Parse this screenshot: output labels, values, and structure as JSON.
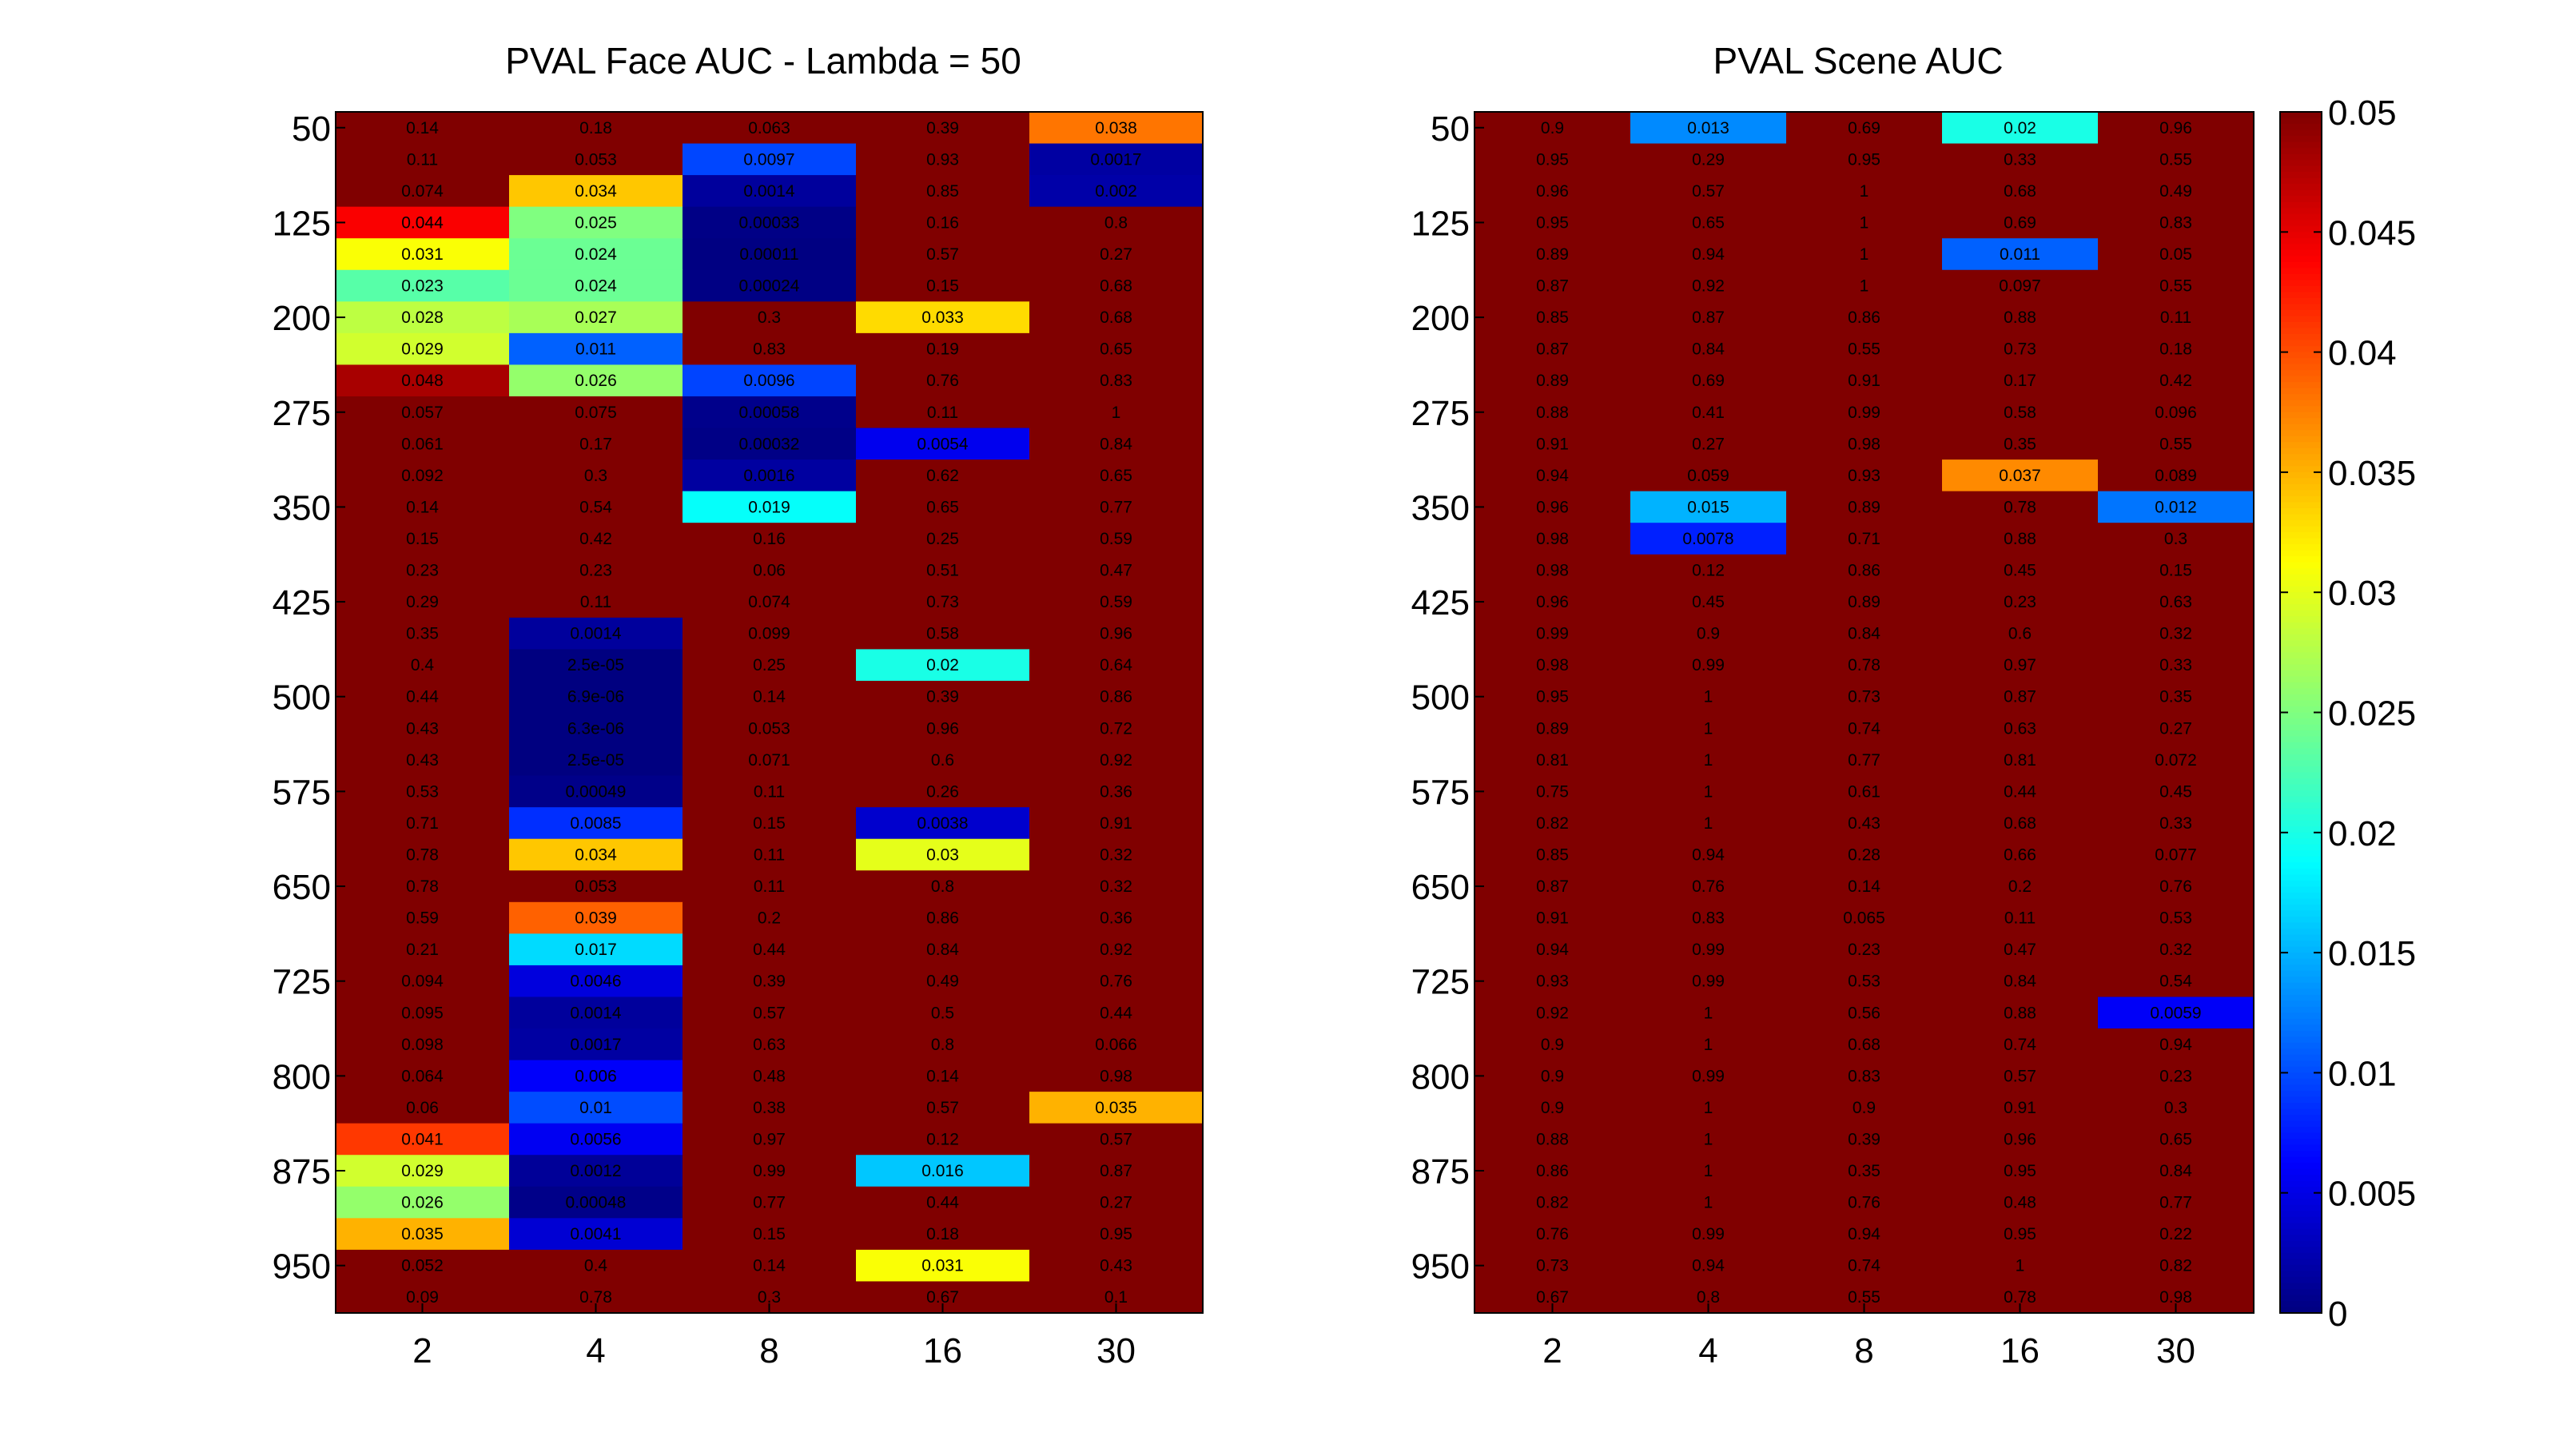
{
  "chart_data": [
    {
      "type": "heatmap",
      "title": "PVAL Face AUC - Lambda = 50",
      "x_tick_labels": [
        "2",
        "4",
        "8",
        "16",
        "30"
      ],
      "y_tick_labels": [
        "50",
        "125",
        "200",
        "275",
        "350",
        "425",
        "500",
        "575",
        "650",
        "725",
        "800",
        "875",
        "950"
      ],
      "rows": 38,
      "clim": [
        0,
        0.05
      ],
      "colormap": "jet",
      "labels": [
        [
          "0.14",
          "0.18",
          "0.063",
          "0.39",
          "0.038"
        ],
        [
          "0.11",
          "0.053",
          "0.0097",
          "0.93",
          "0.0017"
        ],
        [
          "0.074",
          "0.034",
          "0.0014",
          "0.85",
          "0.002"
        ],
        [
          "0.044",
          "0.025",
          "0.00033",
          "0.16",
          "0.8"
        ],
        [
          "0.031",
          "0.024",
          "0.00011",
          "0.57",
          "0.27"
        ],
        [
          "0.023",
          "0.024",
          "0.00024",
          "0.15",
          "0.68"
        ],
        [
          "0.028",
          "0.027",
          "0.3",
          "0.033",
          "0.68"
        ],
        [
          "0.029",
          "0.011",
          "0.83",
          "0.19",
          "0.65"
        ],
        [
          "0.048",
          "0.026",
          "0.0096",
          "0.76",
          "0.83"
        ],
        [
          "0.057",
          "0.075",
          "0.00058",
          "0.11",
          "1"
        ],
        [
          "0.061",
          "0.17",
          "0.00032",
          "0.0054",
          "0.84"
        ],
        [
          "0.092",
          "0.3",
          "0.0016",
          "0.62",
          "0.65"
        ],
        [
          "0.14",
          "0.54",
          "0.019",
          "0.65",
          "0.77"
        ],
        [
          "0.15",
          "0.42",
          "0.16",
          "0.25",
          "0.59"
        ],
        [
          "0.23",
          "0.23",
          "0.06",
          "0.51",
          "0.47"
        ],
        [
          "0.29",
          "0.11",
          "0.074",
          "0.73",
          "0.59"
        ],
        [
          "0.35",
          "0.0014",
          "0.099",
          "0.58",
          "0.96"
        ],
        [
          "0.4",
          "2.5e-05",
          "0.25",
          "0.02",
          "0.64"
        ],
        [
          "0.44",
          "6.9e-06",
          "0.14",
          "0.39",
          "0.86"
        ],
        [
          "0.43",
          "6.3e-06",
          "0.053",
          "0.96",
          "0.72"
        ],
        [
          "0.43",
          "2.5e-05",
          "0.071",
          "0.6",
          "0.92"
        ],
        [
          "0.53",
          "0.00049",
          "0.11",
          "0.26",
          "0.36"
        ],
        [
          "0.71",
          "0.0085",
          "0.15",
          "0.0038",
          "0.91"
        ],
        [
          "0.78",
          "0.034",
          "0.11",
          "0.03",
          "0.32"
        ],
        [
          "0.78",
          "0.053",
          "0.11",
          "0.8",
          "0.32"
        ],
        [
          "0.59",
          "0.039",
          "0.2",
          "0.86",
          "0.36"
        ],
        [
          "0.21",
          "0.017",
          "0.44",
          "0.84",
          "0.92"
        ],
        [
          "0.094",
          "0.0046",
          "0.39",
          "0.49",
          "0.76"
        ],
        [
          "0.095",
          "0.0014",
          "0.57",
          "0.5",
          "0.44"
        ],
        [
          "0.098",
          "0.0017",
          "0.63",
          "0.8",
          "0.066"
        ],
        [
          "0.064",
          "0.006",
          "0.48",
          "0.14",
          "0.98"
        ],
        [
          "0.06",
          "0.01",
          "0.38",
          "0.57",
          "0.035"
        ],
        [
          "0.041",
          "0.0056",
          "0.97",
          "0.12",
          "0.57"
        ],
        [
          "0.029",
          "0.0012",
          "0.99",
          "0.016",
          "0.87"
        ],
        [
          "0.026",
          "0.00048",
          "0.77",
          "0.44",
          "0.27"
        ],
        [
          "0.035",
          "0.0041",
          "0.15",
          "0.18",
          "0.95"
        ],
        [
          "0.052",
          "0.4",
          "0.14",
          "0.031",
          "0.43"
        ],
        [
          "0.09",
          "0.78",
          "0.3",
          "0.67",
          "0.1"
        ]
      ]
    },
    {
      "type": "heatmap",
      "title": "PVAL Scene AUC",
      "x_tick_labels": [
        "2",
        "4",
        "8",
        "16",
        "30"
      ],
      "y_tick_labels": [
        "50",
        "125",
        "200",
        "275",
        "350",
        "425",
        "500",
        "575",
        "650",
        "725",
        "800",
        "875",
        "950"
      ],
      "rows": 38,
      "clim": [
        0,
        0.05
      ],
      "colormap": "jet",
      "labels": [
        [
          "0.9",
          "0.013",
          "0.69",
          "0.02",
          "0.96"
        ],
        [
          "0.95",
          "0.29",
          "0.95",
          "0.33",
          "0.55"
        ],
        [
          "0.96",
          "0.57",
          "1",
          "0.68",
          "0.49"
        ],
        [
          "0.95",
          "0.65",
          "1",
          "0.69",
          "0.83"
        ],
        [
          "0.89",
          "0.94",
          "1",
          "0.011",
          "0.05"
        ],
        [
          "0.87",
          "0.92",
          "1",
          "0.097",
          "0.55"
        ],
        [
          "0.85",
          "0.87",
          "0.86",
          "0.88",
          "0.11"
        ],
        [
          "0.87",
          "0.84",
          "0.55",
          "0.73",
          "0.18"
        ],
        [
          "0.89",
          "0.69",
          "0.91",
          "0.17",
          "0.42"
        ],
        [
          "0.88",
          "0.41",
          "0.99",
          "0.58",
          "0.096"
        ],
        [
          "0.91",
          "0.27",
          "0.98",
          "0.35",
          "0.55"
        ],
        [
          "0.94",
          "0.059",
          "0.93",
          "0.037",
          "0.089"
        ],
        [
          "0.96",
          "0.015",
          "0.89",
          "0.78",
          "0.012"
        ],
        [
          "0.98",
          "0.0078",
          "0.71",
          "0.88",
          "0.3"
        ],
        [
          "0.98",
          "0.12",
          "0.86",
          "0.45",
          "0.15"
        ],
        [
          "0.96",
          "0.45",
          "0.89",
          "0.23",
          "0.63"
        ],
        [
          "0.99",
          "0.9",
          "0.84",
          "0.6",
          "0.32"
        ],
        [
          "0.98",
          "0.99",
          "0.78",
          "0.97",
          "0.33"
        ],
        [
          "0.95",
          "1",
          "0.73",
          "0.87",
          "0.35"
        ],
        [
          "0.89",
          "1",
          "0.74",
          "0.63",
          "0.27"
        ],
        [
          "0.81",
          "1",
          "0.77",
          "0.81",
          "0.072"
        ],
        [
          "0.75",
          "1",
          "0.61",
          "0.44",
          "0.45"
        ],
        [
          "0.82",
          "1",
          "0.43",
          "0.68",
          "0.33"
        ],
        [
          "0.85",
          "0.94",
          "0.28",
          "0.66",
          "0.077"
        ],
        [
          "0.87",
          "0.76",
          "0.14",
          "0.2",
          "0.76"
        ],
        [
          "0.91",
          "0.83",
          "0.065",
          "0.11",
          "0.53"
        ],
        [
          "0.94",
          "0.99",
          "0.23",
          "0.47",
          "0.32"
        ],
        [
          "0.93",
          "0.99",
          "0.53",
          "0.84",
          "0.54"
        ],
        [
          "0.92",
          "1",
          "0.56",
          "0.88",
          "0.0059"
        ],
        [
          "0.9",
          "1",
          "0.68",
          "0.74",
          "0.94"
        ],
        [
          "0.9",
          "0.99",
          "0.83",
          "0.57",
          "0.23"
        ],
        [
          "0.9",
          "1",
          "0.9",
          "0.91",
          "0.3"
        ],
        [
          "0.88",
          "1",
          "0.39",
          "0.96",
          "0.65"
        ],
        [
          "0.86",
          "1",
          "0.35",
          "0.95",
          "0.84"
        ],
        [
          "0.82",
          "1",
          "0.76",
          "0.48",
          "0.77"
        ],
        [
          "0.76",
          "0.99",
          "0.94",
          "0.95",
          "0.22"
        ],
        [
          "0.73",
          "0.94",
          "0.74",
          "1",
          "0.82"
        ],
        [
          "0.67",
          "0.8",
          "0.55",
          "0.78",
          "0.98"
        ]
      ]
    }
  ],
  "colorbar": {
    "range": [
      0,
      0.05
    ],
    "tick_labels": [
      "0.05",
      "0.045",
      "0.04",
      "0.035",
      "0.03",
      "0.025",
      "0.02",
      "0.015",
      "0.01",
      "0.005",
      "0"
    ],
    "tick_values": [
      0.05,
      0.045,
      0.04,
      0.035,
      0.03,
      0.025,
      0.02,
      0.015,
      0.01,
      0.005,
      0
    ]
  }
}
